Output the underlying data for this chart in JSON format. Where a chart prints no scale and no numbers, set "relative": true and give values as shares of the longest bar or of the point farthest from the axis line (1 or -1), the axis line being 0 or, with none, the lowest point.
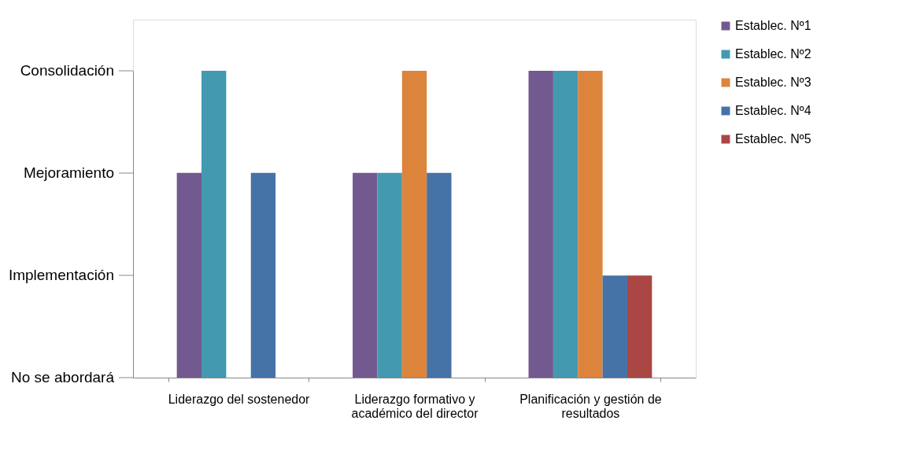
{
  "chart_data": {
    "type": "bar",
    "relative": true,
    "categories": [
      "Liderazgo del sostenedor",
      "Liderazgo formativo y académico del director",
      "Planificación y gestión de resultados"
    ],
    "series": [
      {
        "name": "Establec. Nº1",
        "color": "#725990",
        "values": [
          0.667,
          0.667,
          1
        ]
      },
      {
        "name": "Establec. Nº2",
        "color": "#4299b0",
        "values": [
          1,
          0.667,
          1
        ]
      },
      {
        "name": "Establec. Nº3",
        "color": "#dd843c",
        "values": [
          0,
          1,
          1
        ]
      },
      {
        "name": "Establec. Nº4",
        "color": "#4572a7",
        "values": [
          0.667,
          0.667,
          0.333
        ]
      },
      {
        "name": "Establec. Nº5",
        "color": "#aa4643",
        "values": [
          0,
          0,
          0.333
        ]
      }
    ],
    "annotations": [
      "No se abordará",
      "Implementación",
      "Mejoramiento",
      "Consolidación"
    ],
    "grid": false,
    "legend": "right"
  }
}
